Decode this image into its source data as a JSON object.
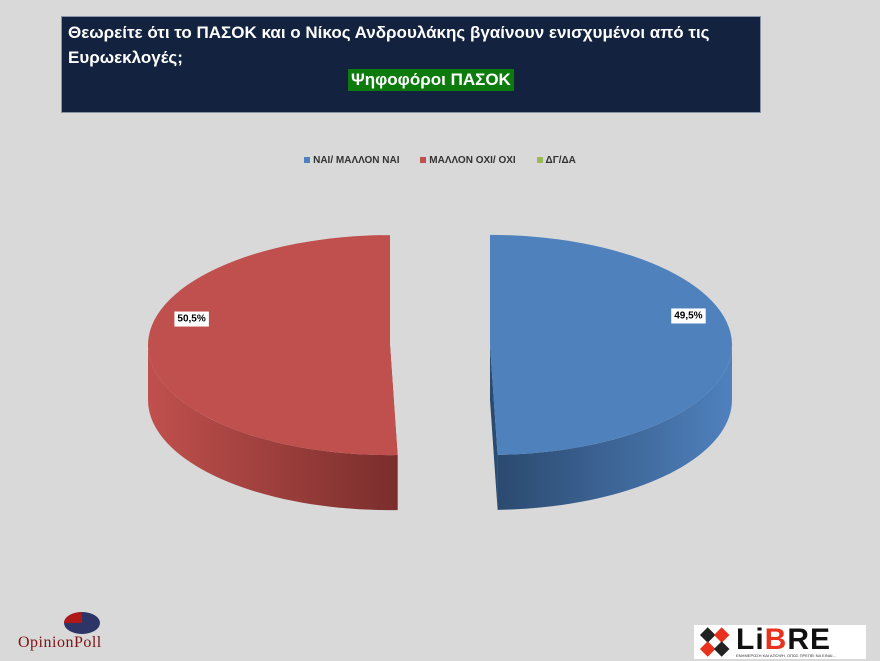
{
  "header": {
    "question": "Θεωρείτε ότι το ΠΑΣΟΚ και ο Νίκος Ανδρουλάκης βγαίνουν ενισχυμένοι από τις Ευρωεκλογές;",
    "subtitle": "Ψηφοφόροι ΠΑΣΟΚ"
  },
  "chart_data": {
    "type": "pie",
    "title": "Θεωρείτε ότι το ΠΑΣΟΚ και ο Νίκος Ανδρουλάκης βγαίνουν ενισχυμένοι από τις Ευρωεκλογές;",
    "subtitle": "Ψηφοφόροι ΠΑΣΟΚ",
    "style": "3d-exploded",
    "legend_position": "top",
    "categories": [
      "ΝΑΙ/ ΜΑΛΛΟΝ ΝΑΙ",
      "ΜΑΛΛΟΝ ΟΧΙ/ ΟΧΙ",
      "ΔΓ/ΔΑ"
    ],
    "values": [
      49.5,
      50.5,
      0
    ],
    "data_labels": [
      "49,5%",
      "50,5%",
      ""
    ],
    "colors": [
      "#4f81bd",
      "#c0504d",
      "#9bbb59"
    ]
  },
  "logos": {
    "opinion_poll": "OpinionPoll",
    "libre": "LiBRE",
    "libre_tagline": "ΕΝΗΜΕΡΩΣΗ ΚΑΙ ΑΠΟΨΗ, ΟΠΩΣ ΠΡΕΠΕΙ ΝΑ ΕΙΝΑΙ..."
  }
}
